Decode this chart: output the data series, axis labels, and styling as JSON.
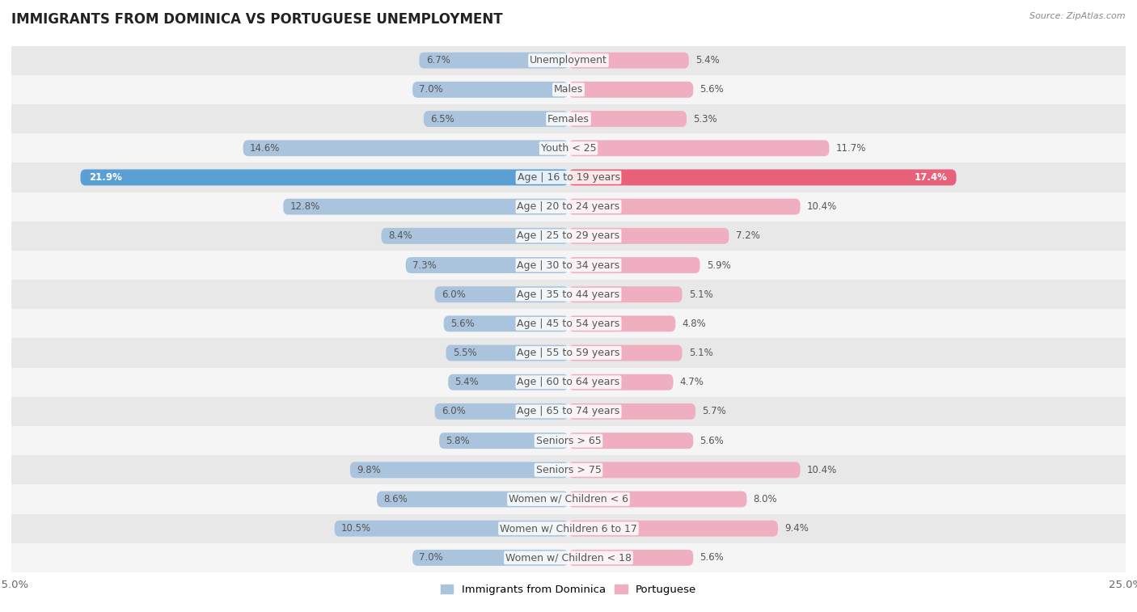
{
  "title": "IMMIGRANTS FROM DOMINICA VS PORTUGUESE UNEMPLOYMENT",
  "source": "Source: ZipAtlas.com",
  "categories": [
    "Unemployment",
    "Males",
    "Females",
    "Youth < 25",
    "Age | 16 to 19 years",
    "Age | 20 to 24 years",
    "Age | 25 to 29 years",
    "Age | 30 to 34 years",
    "Age | 35 to 44 years",
    "Age | 45 to 54 years",
    "Age | 55 to 59 years",
    "Age | 60 to 64 years",
    "Age | 65 to 74 years",
    "Seniors > 65",
    "Seniors > 75",
    "Women w/ Children < 6",
    "Women w/ Children 6 to 17",
    "Women w/ Children < 18"
  ],
  "left_values": [
    6.7,
    7.0,
    6.5,
    14.6,
    21.9,
    12.8,
    8.4,
    7.3,
    6.0,
    5.6,
    5.5,
    5.4,
    6.0,
    5.8,
    9.8,
    8.6,
    10.5,
    7.0
  ],
  "right_values": [
    5.4,
    5.6,
    5.3,
    11.7,
    17.4,
    10.4,
    7.2,
    5.9,
    5.1,
    4.8,
    5.1,
    4.7,
    5.7,
    5.6,
    10.4,
    8.0,
    9.4,
    5.6
  ],
  "left_color": "#aac4de",
  "right_color": "#f0afc0",
  "left_highlight_color": "#5a9fd4",
  "right_highlight_color": "#e8607a",
  "highlight_index": 4,
  "axis_limit": 25.0,
  "left_label": "Immigrants from Dominica",
  "right_label": "Portuguese",
  "bg_color_odd": "#e8e8e8",
  "bg_color_even": "#f5f5f5",
  "bar_height": 0.55,
  "title_fontsize": 12,
  "label_fontsize": 9,
  "value_fontsize": 8.5,
  "text_color": "#555555",
  "white_text": "#ffffff"
}
